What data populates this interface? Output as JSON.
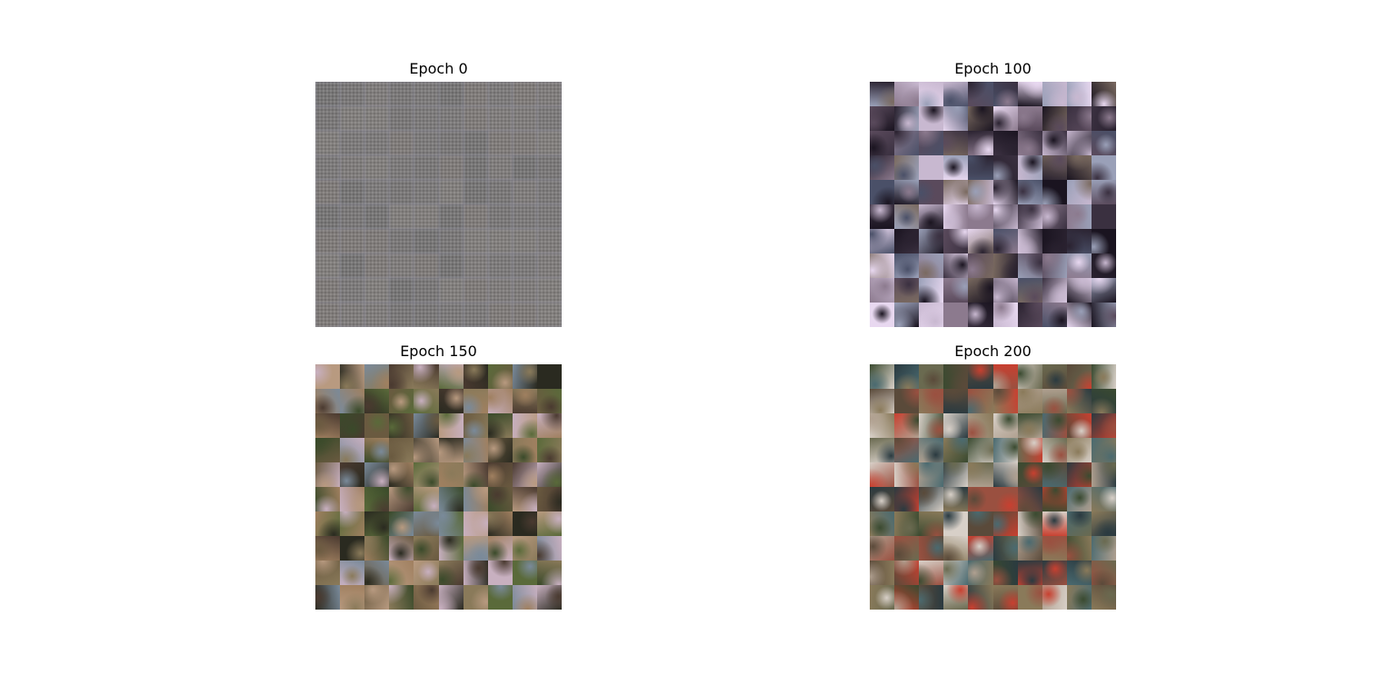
{
  "panels": [
    {
      "title": "Epoch 0",
      "palette": [
        "#7c7a7a",
        "#807c7b",
        "#7a7878",
        "#827e7c",
        "#767575",
        "#7f7b79"
      ]
    },
    {
      "title": "Epoch 100",
      "palette": [
        "#2a2230",
        "#5a4a5c",
        "#8c7a8e",
        "#c8b8d0",
        "#e8d8f0",
        "#4a5068",
        "#1a1420",
        "#7a6a60",
        "#9aa0b8",
        "#3a3040"
      ]
    },
    {
      "title": "Epoch 150",
      "palette": [
        "#3a4a2a",
        "#6a5a40",
        "#8a7a5a",
        "#2a2a20",
        "#b89a80",
        "#5a6a3a",
        "#c8b0c0",
        "#4a3a30",
        "#7a8a9a",
        "#a08060"
      ]
    },
    {
      "title": "Epoch 200",
      "palette": [
        "#3a4a30",
        "#c84030",
        "#6a6a50",
        "#8a7a5a",
        "#2a3a40",
        "#b0a090",
        "#4a6a70",
        "#9a5040",
        "#d8d0c8",
        "#5a4a3a"
      ]
    }
  ]
}
